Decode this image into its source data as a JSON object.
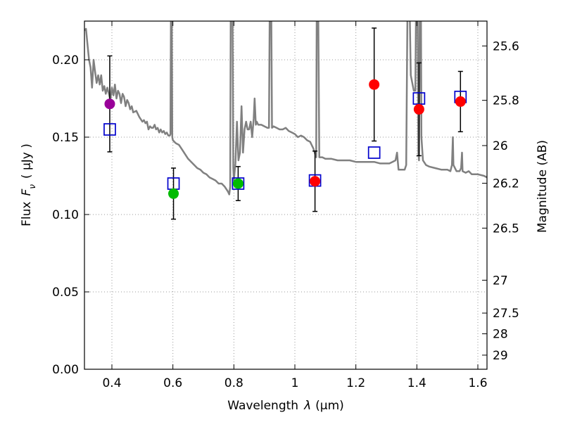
{
  "chart_data": {
    "type": "scatter",
    "xlabel_prefix": "Wavelength",
    "xlabel_symbol": "λ",
    "xlabel_unit": "(μm)",
    "ylabel_prefix": "Flux",
    "ylabel_symbol": "F",
    "ylabel_subscript": "ν",
    "ylabel_unit": "( μJy )",
    "y2label": "Magnitude (AB)",
    "xlim": [
      0.31,
      1.63
    ],
    "ylim": [
      0.0,
      0.225
    ],
    "xticks": [
      {
        "value": 0.4,
        "label": "0.4"
      },
      {
        "value": 0.6,
        "label": "0.6"
      },
      {
        "value": 0.8,
        "label": "0.8"
      },
      {
        "value": 1.0,
        "label": "1"
      },
      {
        "value": 1.2,
        "label": "1.2"
      },
      {
        "value": 1.4,
        "label": "1.4"
      },
      {
        "value": 1.6,
        "label": "1.6"
      }
    ],
    "yticks": [
      {
        "value": 0.0,
        "label": "0.00"
      },
      {
        "value": 0.05,
        "label": "0.05"
      },
      {
        "value": 0.1,
        "label": "0.10"
      },
      {
        "value": 0.15,
        "label": "0.15"
      },
      {
        "value": 0.2,
        "label": "0.20"
      }
    ],
    "y2ticks": [
      {
        "mag": 25.6,
        "label": "25.6"
      },
      {
        "mag": 25.8,
        "label": "25.8"
      },
      {
        "mag": 26.0,
        "label": "26"
      },
      {
        "mag": 26.2,
        "label": "26.2"
      },
      {
        "mag": 26.5,
        "label": "26.5"
      },
      {
        "mag": 27.0,
        "label": "27"
      },
      {
        "mag": 27.5,
        "label": "27.5"
      },
      {
        "mag": 28.0,
        "label": "28"
      },
      {
        "mag": 29.0,
        "label": "29"
      }
    ],
    "grid": true,
    "observed": [
      {
        "x": 0.393,
        "y": 0.1715,
        "err": 0.031,
        "color": "#990099"
      },
      {
        "x": 0.602,
        "y": 0.1135,
        "err": 0.0165,
        "color": "#00bb00"
      },
      {
        "x": 0.814,
        "y": 0.12,
        "err": 0.011,
        "color": "#00bb00"
      },
      {
        "x": 1.066,
        "y": 0.1215,
        "err": 0.0195,
        "color": "#ff0000"
      },
      {
        "x": 1.26,
        "y": 0.184,
        "err": 0.0365,
        "color": "#ff0000"
      },
      {
        "x": 1.407,
        "y": 0.168,
        "err": 0.03,
        "color": "#ff0000"
      },
      {
        "x": 1.543,
        "y": 0.173,
        "err": 0.0195,
        "color": "#ff0000"
      }
    ],
    "model_points": [
      {
        "x": 0.393,
        "y": 0.155
      },
      {
        "x": 0.602,
        "y": 0.12
      },
      {
        "x": 0.814,
        "y": 0.12
      },
      {
        "x": 1.066,
        "y": 0.122
      },
      {
        "x": 1.26,
        "y": 0.14
      },
      {
        "x": 1.407,
        "y": 0.175
      },
      {
        "x": 1.543,
        "y": 0.176
      }
    ],
    "model_spectrum": [
      [
        0.31,
        0.219
      ],
      [
        0.315,
        0.22
      ],
      [
        0.32,
        0.21
      ],
      [
        0.325,
        0.2
      ],
      [
        0.33,
        0.195
      ],
      [
        0.335,
        0.182
      ],
      [
        0.34,
        0.2
      ],
      [
        0.345,
        0.192
      ],
      [
        0.35,
        0.185
      ],
      [
        0.355,
        0.19
      ],
      [
        0.36,
        0.184
      ],
      [
        0.365,
        0.19
      ],
      [
        0.37,
        0.18
      ],
      [
        0.375,
        0.183
      ],
      [
        0.38,
        0.178
      ],
      [
        0.385,
        0.182
      ],
      [
        0.39,
        0.178
      ],
      [
        0.395,
        0.174
      ],
      [
        0.4,
        0.182
      ],
      [
        0.405,
        0.177
      ],
      [
        0.41,
        0.184
      ],
      [
        0.415,
        0.175
      ],
      [
        0.42,
        0.18
      ],
      [
        0.425,
        0.178
      ],
      [
        0.43,
        0.172
      ],
      [
        0.435,
        0.178
      ],
      [
        0.44,
        0.176
      ],
      [
        0.445,
        0.17
      ],
      [
        0.45,
        0.174
      ],
      [
        0.455,
        0.172
      ],
      [
        0.46,
        0.168
      ],
      [
        0.465,
        0.17
      ],
      [
        0.47,
        0.166
      ],
      [
        0.48,
        0.167
      ],
      [
        0.49,
        0.163
      ],
      [
        0.5,
        0.16
      ],
      [
        0.505,
        0.161
      ],
      [
        0.51,
        0.159
      ],
      [
        0.515,
        0.16
      ],
      [
        0.52,
        0.155
      ],
      [
        0.525,
        0.157
      ],
      [
        0.53,
        0.156
      ],
      [
        0.535,
        0.156
      ],
      [
        0.54,
        0.158
      ],
      [
        0.545,
        0.155
      ],
      [
        0.55,
        0.156
      ],
      [
        0.555,
        0.153
      ],
      [
        0.56,
        0.155
      ],
      [
        0.565,
        0.153
      ],
      [
        0.57,
        0.154
      ],
      [
        0.575,
        0.152
      ],
      [
        0.58,
        0.153
      ],
      [
        0.585,
        0.151
      ],
      [
        0.59,
        0.151
      ],
      [
        0.592,
        0.152
      ],
      [
        0.594,
        0.25
      ],
      [
        0.596,
        0.25
      ],
      [
        0.598,
        0.15
      ],
      [
        0.6,
        0.148
      ],
      [
        0.605,
        0.147
      ],
      [
        0.61,
        0.146
      ],
      [
        0.62,
        0.145
      ],
      [
        0.63,
        0.142
      ],
      [
        0.64,
        0.139
      ],
      [
        0.65,
        0.136
      ],
      [
        0.66,
        0.134
      ],
      [
        0.67,
        0.132
      ],
      [
        0.68,
        0.13
      ],
      [
        0.69,
        0.129
      ],
      [
        0.7,
        0.127
      ],
      [
        0.71,
        0.126
      ],
      [
        0.72,
        0.124
      ],
      [
        0.73,
        0.123
      ],
      [
        0.74,
        0.122
      ],
      [
        0.75,
        0.12
      ],
      [
        0.76,
        0.12
      ],
      [
        0.77,
        0.118
      ],
      [
        0.78,
        0.115
      ],
      [
        0.785,
        0.113
      ],
      [
        0.788,
        0.118
      ],
      [
        0.79,
        0.25
      ],
      [
        0.795,
        0.25
      ],
      [
        0.798,
        0.13
      ],
      [
        0.8,
        0.122
      ],
      [
        0.805,
        0.133
      ],
      [
        0.81,
        0.16
      ],
      [
        0.815,
        0.135
      ],
      [
        0.82,
        0.14
      ],
      [
        0.825,
        0.17
      ],
      [
        0.83,
        0.14
      ],
      [
        0.835,
        0.155
      ],
      [
        0.84,
        0.16
      ],
      [
        0.845,
        0.155
      ],
      [
        0.85,
        0.155
      ],
      [
        0.855,
        0.16
      ],
      [
        0.86,
        0.15
      ],
      [
        0.865,
        0.162
      ],
      [
        0.868,
        0.175
      ],
      [
        0.872,
        0.158
      ],
      [
        0.875,
        0.16
      ],
      [
        0.88,
        0.158
      ],
      [
        0.89,
        0.158
      ],
      [
        0.9,
        0.157
      ],
      [
        0.91,
        0.156
      ],
      [
        0.915,
        0.156
      ],
      [
        0.918,
        0.25
      ],
      [
        0.922,
        0.25
      ],
      [
        0.925,
        0.156
      ],
      [
        0.93,
        0.157
      ],
      [
        0.94,
        0.156
      ],
      [
        0.95,
        0.155
      ],
      [
        0.96,
        0.155
      ],
      [
        0.97,
        0.156
      ],
      [
        0.98,
        0.154
      ],
      [
        0.99,
        0.153
      ],
      [
        1.0,
        0.152
      ],
      [
        1.01,
        0.15
      ],
      [
        1.02,
        0.151
      ],
      [
        1.03,
        0.15
      ],
      [
        1.04,
        0.148
      ],
      [
        1.05,
        0.147
      ],
      [
        1.055,
        0.145
      ],
      [
        1.06,
        0.143
      ],
      [
        1.065,
        0.14
      ],
      [
        1.07,
        0.137
      ],
      [
        1.072,
        0.25
      ],
      [
        1.076,
        0.25
      ],
      [
        1.08,
        0.137
      ],
      [
        1.09,
        0.137
      ],
      [
        1.1,
        0.136
      ],
      [
        1.12,
        0.136
      ],
      [
        1.14,
        0.135
      ],
      [
        1.16,
        0.135
      ],
      [
        1.18,
        0.135
      ],
      [
        1.2,
        0.134
      ],
      [
        1.22,
        0.134
      ],
      [
        1.24,
        0.134
      ],
      [
        1.26,
        0.134
      ],
      [
        1.28,
        0.133
      ],
      [
        1.3,
        0.133
      ],
      [
        1.31,
        0.133
      ],
      [
        1.32,
        0.134
      ],
      [
        1.33,
        0.135
      ],
      [
        1.335,
        0.14
      ],
      [
        1.338,
        0.133
      ],
      [
        1.34,
        0.129
      ],
      [
        1.35,
        0.129
      ],
      [
        1.36,
        0.129
      ],
      [
        1.365,
        0.132
      ],
      [
        1.37,
        0.25
      ],
      [
        1.375,
        0.25
      ],
      [
        1.38,
        0.19
      ],
      [
        1.39,
        0.18
      ],
      [
        1.395,
        0.18
      ],
      [
        1.398,
        0.25
      ],
      [
        1.402,
        0.25
      ],
      [
        1.405,
        0.14
      ],
      [
        1.407,
        0.135
      ],
      [
        1.41,
        0.25
      ],
      [
        1.413,
        0.25
      ],
      [
        1.415,
        0.15
      ],
      [
        1.42,
        0.135
      ],
      [
        1.43,
        0.132
      ],
      [
        1.44,
        0.131
      ],
      [
        1.46,
        0.13
      ],
      [
        1.48,
        0.129
      ],
      [
        1.5,
        0.129
      ],
      [
        1.51,
        0.128
      ],
      [
        1.515,
        0.132
      ],
      [
        1.518,
        0.15
      ],
      [
        1.52,
        0.132
      ],
      [
        1.53,
        0.128
      ],
      [
        1.54,
        0.128
      ],
      [
        1.545,
        0.13
      ],
      [
        1.548,
        0.14
      ],
      [
        1.55,
        0.128
      ],
      [
        1.56,
        0.127
      ],
      [
        1.57,
        0.128
      ],
      [
        1.58,
        0.126
      ],
      [
        1.6,
        0.126
      ],
      [
        1.62,
        0.125
      ],
      [
        1.63,
        0.124
      ]
    ],
    "colors": {
      "spectrum": "#808080",
      "model_marker": "#0000cc",
      "errorbar": "#000000",
      "grid": "#999999",
      "axis": "#000000"
    }
  }
}
